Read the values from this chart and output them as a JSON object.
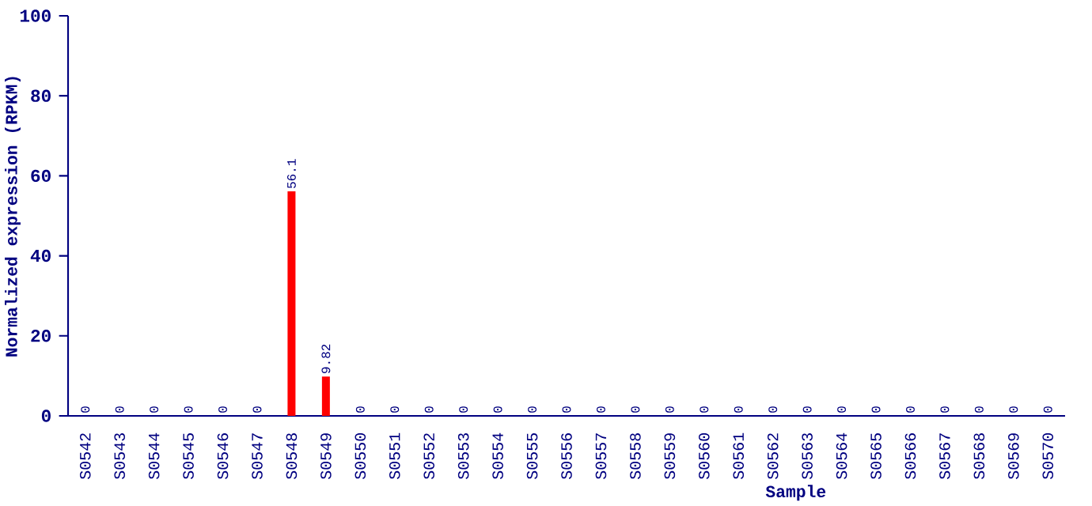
{
  "chart_data": {
    "type": "bar",
    "xlabel": "Sample",
    "ylabel": "Normalized expression (RPKM)",
    "categories": [
      "S0542",
      "S0543",
      "S0544",
      "S0545",
      "S0546",
      "S0547",
      "S0548",
      "S0549",
      "S0550",
      "S0551",
      "S0552",
      "S0553",
      "S0554",
      "S0555",
      "S0556",
      "S0557",
      "S0558",
      "S0559",
      "S0560",
      "S0561",
      "S0562",
      "S0563",
      "S0564",
      "S0565",
      "S0566",
      "S0567",
      "S0568",
      "S0569",
      "S0570"
    ],
    "values": [
      0,
      0,
      0,
      0,
      0,
      0,
      56.1,
      9.82,
      0,
      0,
      0,
      0,
      0,
      0,
      0,
      0,
      0,
      0,
      0,
      0,
      0,
      0,
      0,
      0,
      0,
      0,
      0,
      0,
      0
    ],
    "color": "#ff0000",
    "ylim": [
      0,
      100
    ],
    "yticks": [
      0,
      20,
      40,
      60,
      80,
      100
    ],
    "data_labels": true,
    "grid": false
  }
}
